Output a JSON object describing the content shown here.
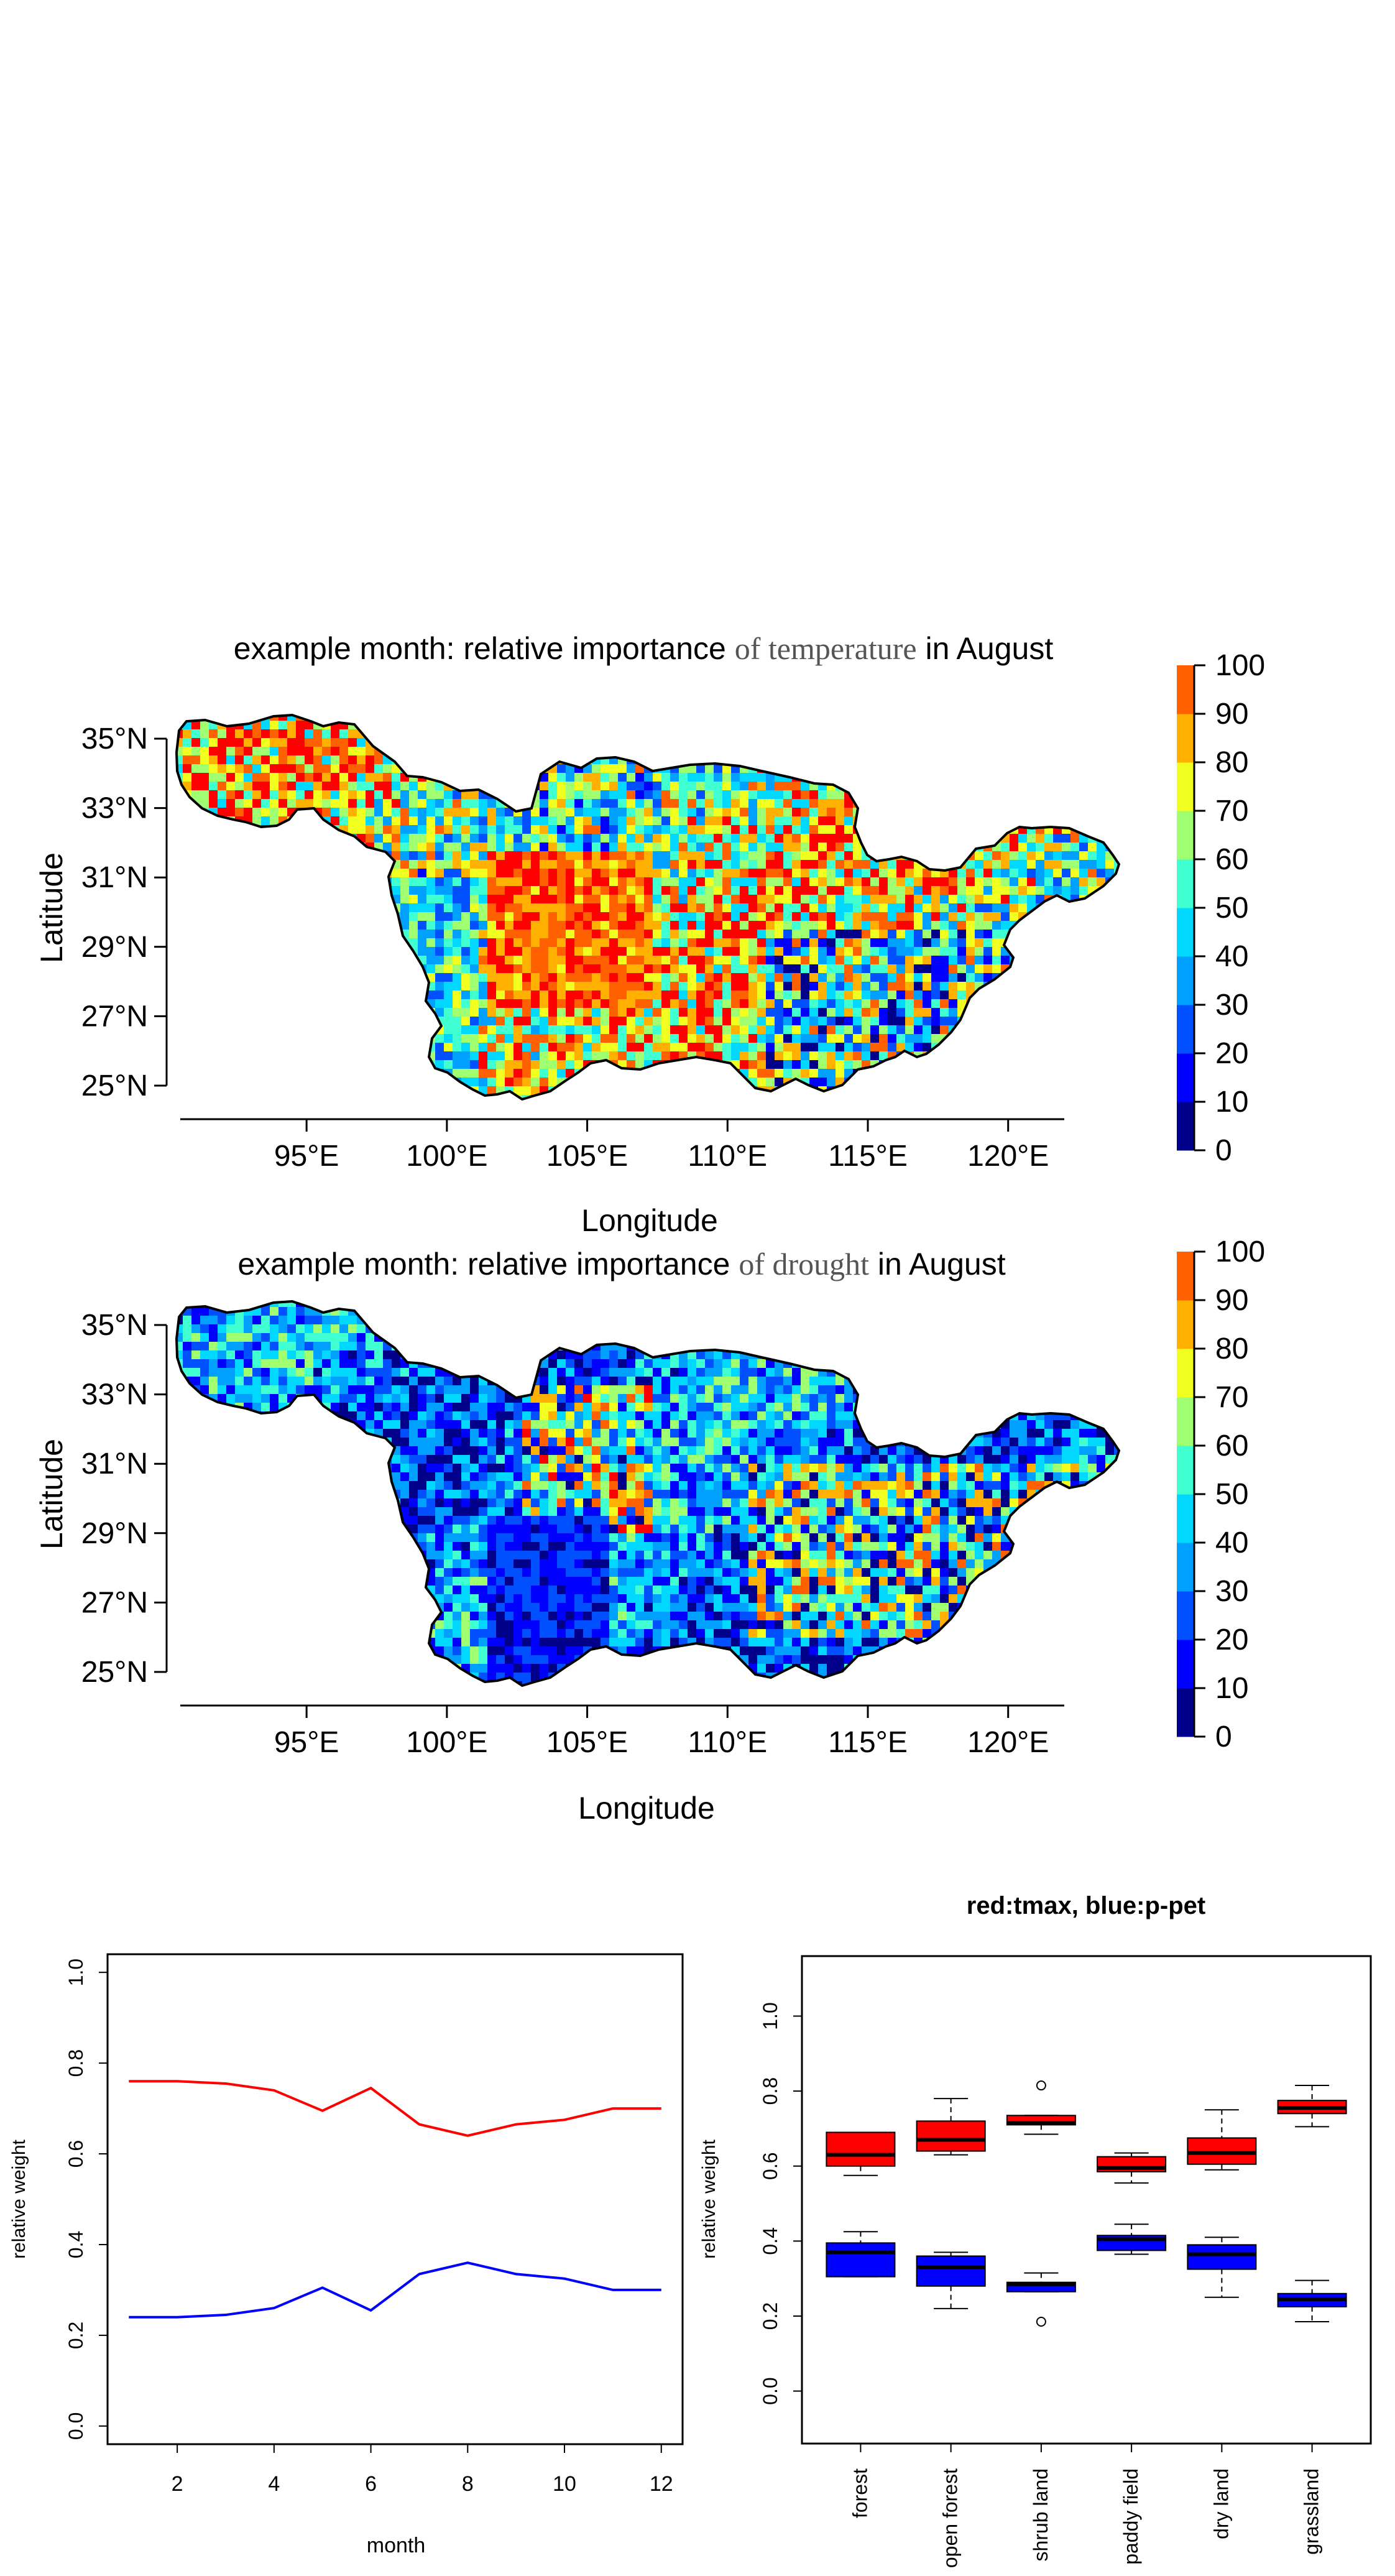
{
  "colors": {
    "red": "#ff0000",
    "blue": "#0000ff",
    "box_red": "#ff0000",
    "box_blue": "#0000ff",
    "axis": "#000000"
  },
  "chart_data": [
    {
      "type": "heatmap",
      "title_parts": [
        "example month: relative importance ",
        "of temperature",
        " in August"
      ],
      "xlabel": "Longitude",
      "ylabel": "Latitude",
      "x_ticks": [
        "95°E",
        "100°E",
        "105°E",
        "110°E",
        "115°E",
        "120°E"
      ],
      "x_tick_values": [
        95,
        100,
        105,
        110,
        115,
        120
      ],
      "xlim": [
        90.5,
        122
      ],
      "y_ticks": [
        "25°N",
        "27°N",
        "29°N",
        "31°N",
        "33°N",
        "35°N"
      ],
      "y_tick_values": [
        25,
        27,
        29,
        31,
        33,
        35
      ],
      "ylim": [
        24.5,
        35.7
      ],
      "colorbar": {
        "ticks": [
          "0",
          "10",
          "20",
          "30",
          "40",
          "50",
          "60",
          "70",
          "80",
          "90",
          "100"
        ],
        "range": [
          0,
          100
        ],
        "colors": [
          "#00008b",
          "#0000ff",
          "#0050ff",
          "#00a0ff",
          "#00d8ff",
          "#40ffd0",
          "#a0ff70",
          "#f0ff20",
          "#ffb000",
          "#ff6000",
          "#ff0000"
        ]
      },
      "dominant": "warm"
    },
    {
      "type": "heatmap",
      "title_parts": [
        "example month: relative importance ",
        "of drought",
        " in August"
      ],
      "xlabel": "Longitude",
      "ylabel": "Latitude",
      "x_ticks": [
        "95°E",
        "100°E",
        "105°E",
        "110°E",
        "115°E",
        "120°E"
      ],
      "x_tick_values": [
        95,
        100,
        105,
        110,
        115,
        120
      ],
      "xlim": [
        90.5,
        122
      ],
      "y_ticks": [
        "25°N",
        "27°N",
        "29°N",
        "31°N",
        "33°N",
        "35°N"
      ],
      "y_tick_values": [
        25,
        27,
        29,
        31,
        33,
        35
      ],
      "ylim": [
        24.5,
        35.7
      ],
      "colorbar": {
        "ticks": [
          "0",
          "10",
          "20",
          "30",
          "40",
          "50",
          "60",
          "70",
          "80",
          "90",
          "100"
        ],
        "range": [
          0,
          100
        ],
        "colors": [
          "#00008b",
          "#0000ff",
          "#0050ff",
          "#00a0ff",
          "#00d8ff",
          "#40ffd0",
          "#a0ff70",
          "#f0ff20",
          "#ffb000",
          "#ff6000",
          "#ff0000"
        ]
      },
      "dominant": "cool"
    },
    {
      "type": "line",
      "title": "",
      "xlabel": "month",
      "ylabel": "relative weight",
      "x": [
        1,
        2,
        3,
        4,
        5,
        6,
        7,
        8,
        9,
        10,
        11,
        12
      ],
      "x_ticks": [
        "2",
        "4",
        "6",
        "8",
        "10",
        "12"
      ],
      "x_tick_values": [
        2,
        4,
        6,
        8,
        10,
        12
      ],
      "xlim": [
        0.56,
        12.44
      ],
      "y_ticks": [
        "0.0",
        "0.2",
        "0.4",
        "0.6",
        "0.8",
        "1.0"
      ],
      "y_tick_values": [
        0,
        0.2,
        0.4,
        0.6,
        0.8,
        1.0
      ],
      "ylim": [
        -0.04,
        1.04
      ],
      "series": [
        {
          "color": "#ff0000",
          "values": [
            0.76,
            0.76,
            0.755,
            0.74,
            0.695,
            0.745,
            0.665,
            0.64,
            0.665,
            0.675,
            0.7,
            0.7
          ]
        },
        {
          "color": "#0000ff",
          "values": [
            0.24,
            0.24,
            0.245,
            0.26,
            0.305,
            0.255,
            0.335,
            0.36,
            0.335,
            0.325,
            0.3,
            0.3
          ]
        }
      ]
    },
    {
      "type": "box",
      "title": "red:tmax, blue:p-pet",
      "xlabel": "",
      "ylabel": "relative weight",
      "categories": [
        "forest",
        "open forest",
        "shrub land",
        "paddy field",
        "dry land",
        "grassland"
      ],
      "y_ticks": [
        "0.0",
        "0.2",
        "0.4",
        "0.6",
        "0.8",
        "1.0"
      ],
      "y_tick_values": [
        0,
        0.2,
        0.4,
        0.6,
        0.8,
        1.0
      ],
      "ylim": [
        -0.14,
        1.16
      ],
      "series": [
        {
          "color": "#ff0000",
          "boxes": [
            {
              "min": 0.575,
              "q1": 0.6,
              "median": 0.63,
              "q3": 0.69,
              "max": 0.69,
              "outliers": []
            },
            {
              "min": 0.63,
              "q1": 0.64,
              "median": 0.67,
              "q3": 0.72,
              "max": 0.78,
              "outliers": []
            },
            {
              "min": 0.685,
              "q1": 0.71,
              "median": 0.715,
              "q3": 0.735,
              "max": 0.735,
              "outliers": [
                0.815
              ]
            },
            {
              "min": 0.555,
              "q1": 0.585,
              "median": 0.595,
              "q3": 0.625,
              "max": 0.635,
              "outliers": []
            },
            {
              "min": 0.59,
              "q1": 0.605,
              "median": 0.635,
              "q3": 0.675,
              "max": 0.75,
              "outliers": []
            },
            {
              "min": 0.705,
              "q1": 0.74,
              "median": 0.755,
              "q3": 0.775,
              "max": 0.815,
              "outliers": []
            }
          ]
        },
        {
          "color": "#0000ff",
          "boxes": [
            {
              "min": 0.305,
              "q1": 0.305,
              "median": 0.37,
              "q3": 0.395,
              "max": 0.425,
              "outliers": []
            },
            {
              "min": 0.22,
              "q1": 0.28,
              "median": 0.33,
              "q3": 0.36,
              "max": 0.37,
              "outliers": []
            },
            {
              "min": 0.265,
              "q1": 0.265,
              "median": 0.285,
              "q3": 0.29,
              "max": 0.315,
              "outliers": [
                0.185
              ]
            },
            {
              "min": 0.365,
              "q1": 0.375,
              "median": 0.405,
              "q3": 0.415,
              "max": 0.445,
              "outliers": []
            },
            {
              "min": 0.25,
              "q1": 0.325,
              "median": 0.365,
              "q3": 0.39,
              "max": 0.41,
              "outliers": []
            },
            {
              "min": 0.185,
              "q1": 0.225,
              "median": 0.245,
              "q3": 0.26,
              "max": 0.295,
              "outliers": []
            }
          ]
        }
      ]
    }
  ]
}
